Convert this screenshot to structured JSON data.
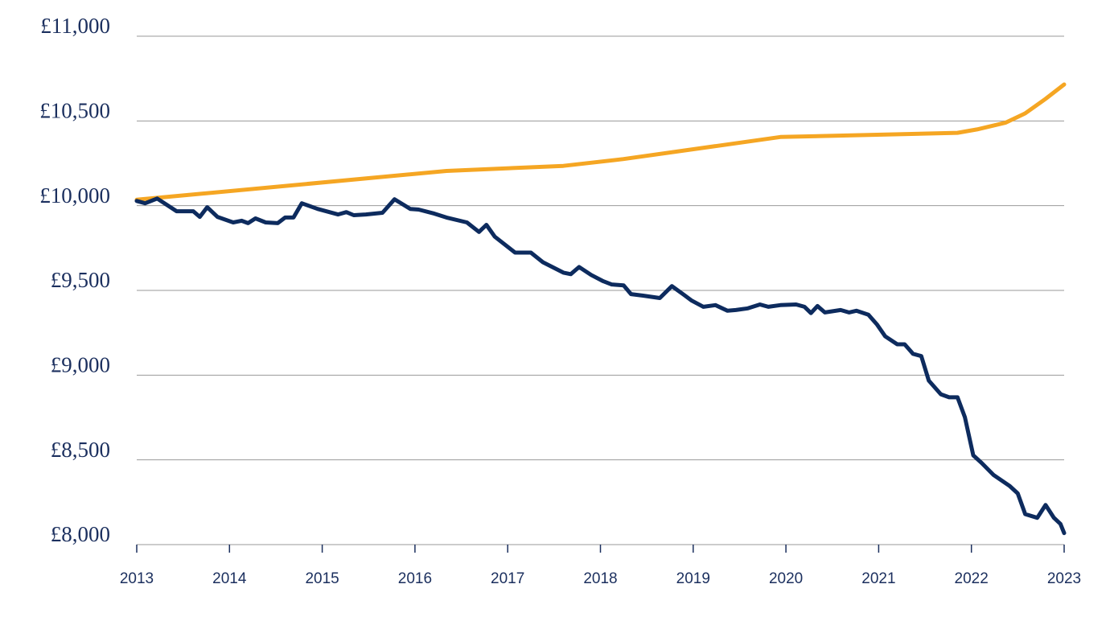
{
  "chart_data": {
    "type": "line",
    "xlim": [
      2013,
      2023
    ],
    "xticks": [
      2013,
      2014,
      2015,
      2016,
      2017,
      2018,
      2019,
      2020,
      2021,
      2022,
      2023
    ],
    "ylim": [
      8000,
      11000
    ],
    "yticks": [
      {
        "value": 8000,
        "label": "£8,000"
      },
      {
        "value": 8500,
        "label": "£8,500"
      },
      {
        "value": 9000,
        "label": "£9,000"
      },
      {
        "value": 9500,
        "label": "£9,500"
      },
      {
        "value": 10000,
        "label": "£10,000"
      },
      {
        "value": 10500,
        "label": "£10,500"
      },
      {
        "value": 11000,
        "label": "£11,000"
      }
    ],
    "grid": true,
    "series": [
      {
        "color": "#f5a623",
        "x": [
          2013.0,
          2016.34,
          2017.6,
          2018.25,
          2019.94,
          2021.85,
          2022.06,
          2022.37,
          2022.58,
          2022.8,
          2023.0
        ],
        "values": [
          10035,
          10205,
          10235,
          10275,
          10405,
          10430,
          10450,
          10490,
          10545,
          10630,
          10715
        ]
      },
      {
        "color": "#0d2b5e",
        "x": [
          2013.0,
          2013.09,
          2013.22,
          2013.43,
          2013.61,
          2013.68,
          2013.76,
          2013.87,
          2014.04,
          2014.13,
          2014.2,
          2014.28,
          2014.39,
          2014.52,
          2014.6,
          2014.69,
          2014.78,
          2014.95,
          2015.17,
          2015.26,
          2015.34,
          2015.47,
          2015.65,
          2015.78,
          2015.95,
          2016.04,
          2016.21,
          2016.34,
          2016.56,
          2016.69,
          2016.77,
          2016.86,
          2017.08,
          2017.25,
          2017.38,
          2017.6,
          2017.68,
          2017.77,
          2017.9,
          2018.03,
          2018.12,
          2018.25,
          2018.33,
          2018.46,
          2018.64,
          2018.77,
          2018.9,
          2018.98,
          2019.11,
          2019.24,
          2019.37,
          2019.46,
          2019.59,
          2019.72,
          2019.81,
          2019.94,
          2020.11,
          2020.2,
          2020.27,
          2020.34,
          2020.42,
          2020.59,
          2020.68,
          2020.76,
          2020.89,
          2020.98,
          2021.07,
          2021.2,
          2021.28,
          2021.37,
          2021.46,
          2021.54,
          2021.67,
          2021.76,
          2021.85,
          2021.93,
          2022.02,
          2022.11,
          2022.24,
          2022.41,
          2022.5,
          2022.58,
          2022.71,
          2022.8,
          2022.89,
          2022.96,
          2023.0
        ],
        "values": [
          10028,
          10014,
          10042,
          9967,
          9967,
          9934,
          9991,
          9934,
          9901,
          9911,
          9897,
          9925,
          9901,
          9897,
          9930,
          9930,
          10014,
          9981,
          9948,
          9962,
          9944,
          9948,
          9958,
          10038,
          9981,
          9977,
          9953,
          9930,
          9901,
          9845,
          9887,
          9817,
          9723,
          9723,
          9666,
          9605,
          9596,
          9638,
          9591,
          9554,
          9535,
          9530,
          9478,
          9469,
          9455,
          9525,
          9474,
          9441,
          9403,
          9413,
          9380,
          9384,
          9394,
          9417,
          9403,
          9413,
          9417,
          9403,
          9366,
          9408,
          9370,
          9384,
          9370,
          9380,
          9356,
          9300,
          9229,
          9182,
          9182,
          9126,
          9112,
          8968,
          8887,
          8869,
          8869,
          8752,
          8527,
          8482,
          8410,
          8347,
          8302,
          8180,
          8158,
          8234,
          8158,
          8122,
          8068
        ]
      }
    ]
  }
}
